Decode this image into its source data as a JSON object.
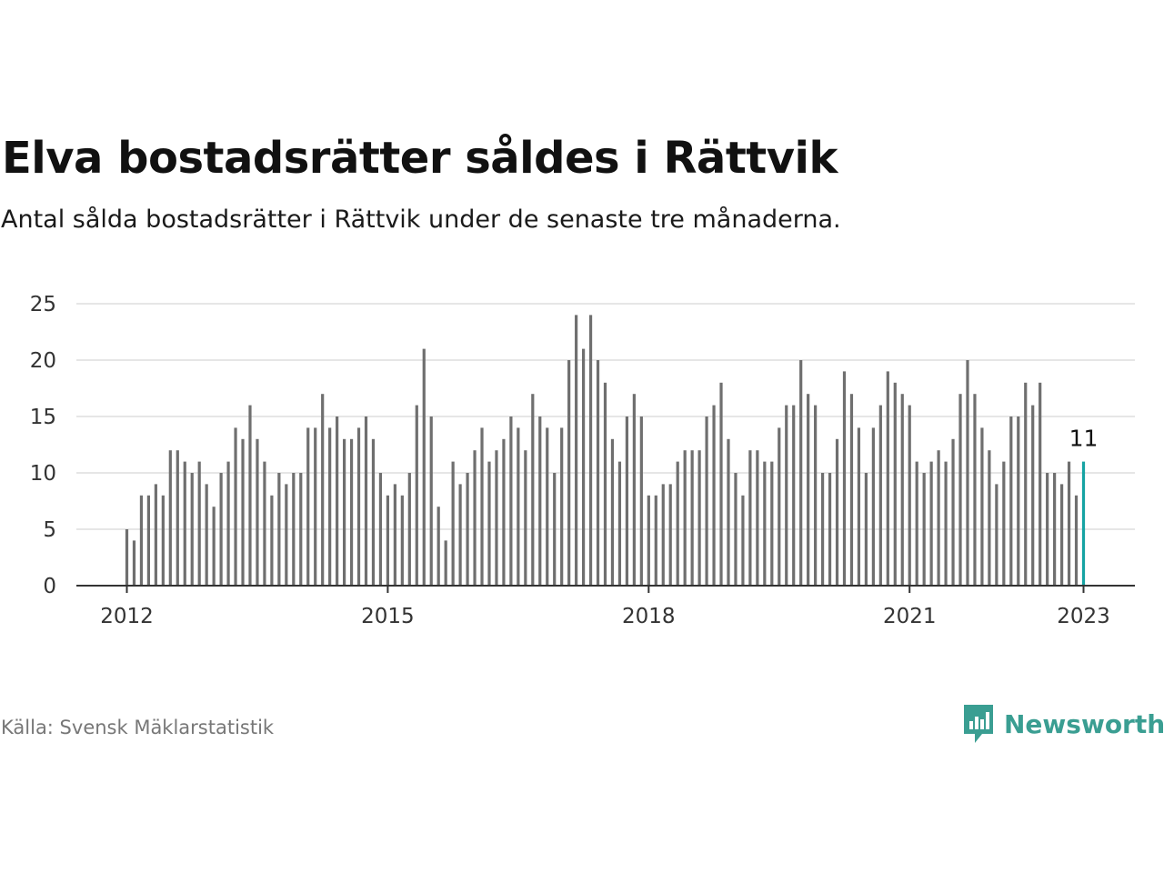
{
  "title": "Elva bostadsrätter såldes i Rättvik",
  "subtitle": "Antal sålda bostadsrätter i Rättvik under de senaste tre månaderna.",
  "source": "Källa: Svensk Mäklarstatistik",
  "brand": {
    "name": "Newsworthy",
    "icon": "newsworthy-logo-icon",
    "color": "#3a9e92"
  },
  "colors": {
    "bar": "#6f6f6f",
    "highlight": "#16a3a3",
    "grid": "#dddddd",
    "axis": "#333333"
  },
  "chart_data": {
    "type": "bar",
    "x_start": "2012-01",
    "x_end": "2023-01",
    "x_ticks": [
      "2012",
      "2015",
      "2018",
      "2021",
      "2023"
    ],
    "y_ticks": [
      "0",
      "5",
      "10",
      "15",
      "20",
      "25"
    ],
    "ylim": [
      0,
      25
    ],
    "grid": true,
    "values": [
      5,
      4,
      8,
      8,
      9,
      8,
      12,
      12,
      11,
      10,
      11,
      9,
      7,
      10,
      11,
      14,
      13,
      16,
      13,
      11,
      8,
      10,
      9,
      10,
      10,
      14,
      14,
      17,
      14,
      15,
      13,
      13,
      14,
      15,
      13,
      10,
      8,
      9,
      8,
      10,
      16,
      21,
      15,
      7,
      4,
      11,
      9,
      10,
      12,
      14,
      11,
      12,
      13,
      15,
      14,
      12,
      17,
      15,
      14,
      10,
      14,
      20,
      24,
      21,
      24,
      20,
      18,
      13,
      11,
      15,
      17,
      15,
      8,
      8,
      9,
      9,
      11,
      12,
      12,
      12,
      15,
      16,
      18,
      13,
      10,
      8,
      12,
      12,
      11,
      11,
      14,
      16,
      16,
      20,
      17,
      16,
      10,
      10,
      13,
      19,
      17,
      14,
      10,
      14,
      16,
      19,
      18,
      17,
      16,
      11,
      10,
      11,
      12,
      11,
      13,
      17,
      20,
      17,
      14,
      12,
      9,
      11,
      15,
      15,
      18,
      16,
      18,
      10,
      10,
      9,
      11,
      8,
      11
    ],
    "highlight_label": "11"
  }
}
